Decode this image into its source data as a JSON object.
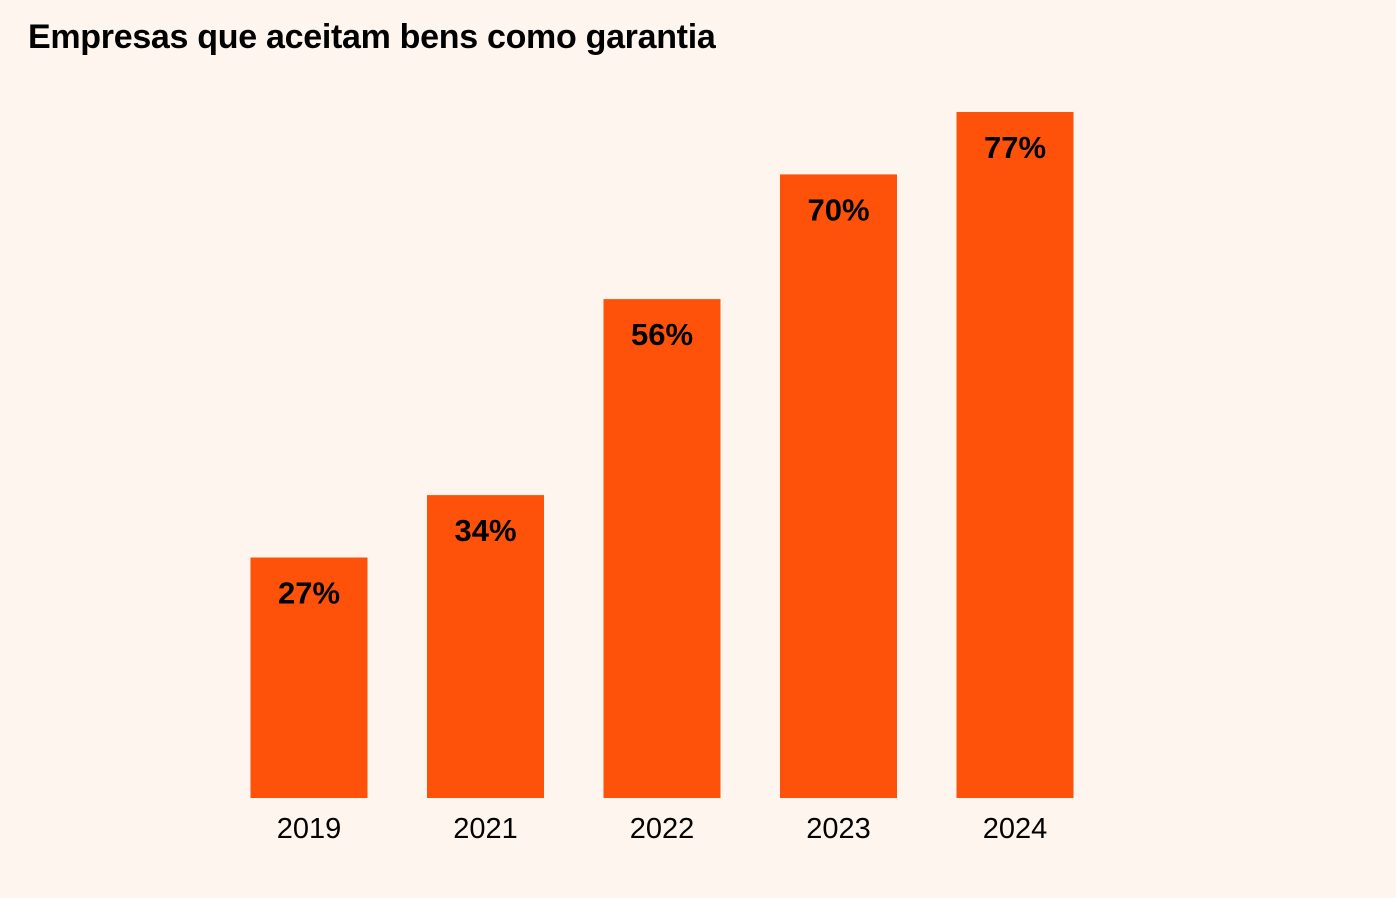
{
  "title": "Empresas que aceitam bens como garantia",
  "colors": {
    "background": "#FEF5EE",
    "bar": "#FE520B",
    "text": "#000000"
  },
  "chart_data": {
    "type": "bar",
    "title": "Empresas que aceitam bens como garantia",
    "xlabel": "",
    "ylabel": "",
    "categories": [
      "2019",
      "2021",
      "2022",
      "2023",
      "2024"
    ],
    "values": [
      27,
      34,
      56,
      70,
      77
    ],
    "value_labels": [
      "27%",
      "34%",
      "56%",
      "70%",
      "77%"
    ],
    "unit": "%",
    "ylim": [
      0,
      77
    ],
    "grid": false,
    "legend": "none"
  }
}
